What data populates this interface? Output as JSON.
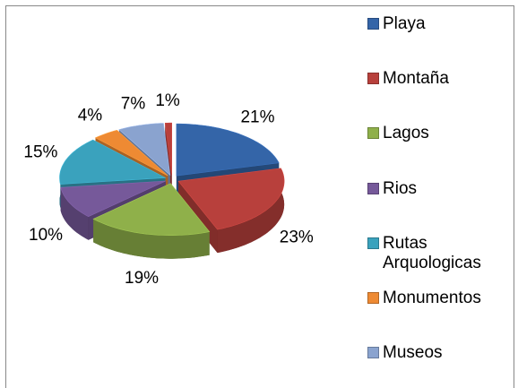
{
  "chart_data": {
    "type": "pie3d",
    "categories": [
      "Playa",
      "Montaña",
      "Lagos",
      "Rios",
      "Rutas Arquologicas",
      "Monumentos",
      "Museos",
      null
    ],
    "values": [
      21,
      23,
      19,
      10,
      15,
      4,
      7,
      1
    ],
    "value_labels": [
      "21%",
      "23%",
      "19%",
      "10%",
      "15%",
      "4%",
      "7%",
      "1%"
    ],
    "colors": [
      "#3465a8",
      "#b8403c",
      "#8fb04a",
      "#76599a",
      "#3aa2bd",
      "#ee8a33",
      "#8aa3cf",
      "#b8403c"
    ],
    "legend": "right"
  }
}
